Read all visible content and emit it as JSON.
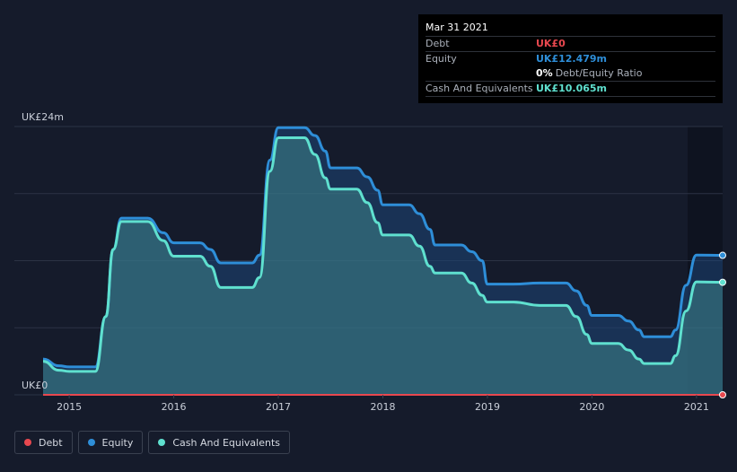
{
  "tooltip": {
    "date": "Mar 31 2021",
    "rows": [
      {
        "label": "Debt",
        "value": "UK£0",
        "color": "#e8484f"
      },
      {
        "label": "Equity",
        "value": "UK£12.479m",
        "color": "#2e8ed8"
      },
      {
        "label": "",
        "value": "0%",
        "sub": "Debt/Equity Ratio",
        "color": "#ffffff"
      },
      {
        "label": "Cash And Equivalents",
        "value": "UK£10.065m",
        "color": "#5fe0cf"
      }
    ]
  },
  "legend": [
    {
      "label": "Debt",
      "color": "#e8484f"
    },
    {
      "label": "Equity",
      "color": "#2e8ed8"
    },
    {
      "label": "Cash And Equivalents",
      "color": "#5fe0cf"
    }
  ],
  "chart_data": {
    "type": "area",
    "title": "",
    "xlabel": "",
    "ylabel": "",
    "x_ticks": [
      2015,
      2016,
      2017,
      2018,
      2019,
      2020,
      2021
    ],
    "y_tick_labels": [
      {
        "value": 0,
        "label": "UK£0"
      },
      {
        "value": 24,
        "label": "UK£24m"
      }
    ],
    "xlim": [
      2014.75,
      2021.25
    ],
    "ylim": [
      0,
      24
    ],
    "grid": true,
    "legend_position": "bottom-left",
    "series": [
      {
        "name": "Equity",
        "color": "#2e8ed8",
        "x": [
          2014.75,
          2014.9,
          2015.0,
          2015.25,
          2015.35,
          2015.42,
          2015.5,
          2015.75,
          2015.9,
          2016.0,
          2016.25,
          2016.35,
          2016.45,
          2016.75,
          2016.82,
          2016.92,
          2017.0,
          2017.25,
          2017.35,
          2017.45,
          2017.5,
          2017.75,
          2017.85,
          2017.95,
          2018.0,
          2018.25,
          2018.35,
          2018.45,
          2018.5,
          2018.75,
          2018.85,
          2018.95,
          2019.0,
          2019.25,
          2019.5,
          2019.75,
          2019.85,
          2019.95,
          2020.0,
          2020.25,
          2020.35,
          2020.45,
          2020.5,
          2020.75,
          2020.8,
          2020.9,
          2021.0,
          2021.25
        ],
        "values": [
          3.2,
          2.6,
          2.5,
          2.5,
          7.0,
          13.0,
          15.8,
          15.8,
          14.5,
          13.6,
          13.6,
          13.0,
          11.8,
          11.8,
          12.5,
          21.0,
          23.9,
          23.9,
          23.2,
          21.8,
          20.3,
          20.3,
          19.5,
          18.3,
          17.0,
          17.0,
          16.2,
          14.8,
          13.4,
          13.4,
          12.8,
          12.0,
          9.9,
          9.9,
          10.0,
          10.0,
          9.3,
          8.0,
          7.1,
          7.1,
          6.6,
          5.8,
          5.2,
          5.2,
          5.8,
          9.8,
          12.5,
          12.48
        ]
      },
      {
        "name": "Cash And Equivalents",
        "color": "#5fe0cf",
        "x": [
          2014.75,
          2014.9,
          2015.0,
          2015.25,
          2015.35,
          2015.42,
          2015.5,
          2015.75,
          2015.9,
          2016.0,
          2016.25,
          2016.35,
          2016.45,
          2016.75,
          2016.82,
          2016.92,
          2017.0,
          2017.25,
          2017.35,
          2017.45,
          2017.5,
          2017.75,
          2017.85,
          2017.95,
          2018.0,
          2018.25,
          2018.35,
          2018.45,
          2018.5,
          2018.75,
          2018.85,
          2018.95,
          2019.0,
          2019.25,
          2019.5,
          2019.75,
          2019.85,
          2019.95,
          2020.0,
          2020.25,
          2020.35,
          2020.45,
          2020.5,
          2020.75,
          2020.8,
          2020.9,
          2021.0,
          2021.25
        ],
        "values": [
          3.0,
          2.2,
          2.1,
          2.1,
          7.0,
          13.0,
          15.5,
          15.5,
          13.8,
          12.4,
          12.4,
          11.5,
          9.6,
          9.6,
          10.5,
          20.0,
          23.0,
          23.0,
          21.5,
          19.4,
          18.4,
          18.4,
          17.2,
          15.4,
          14.3,
          14.3,
          13.3,
          11.5,
          10.9,
          10.9,
          10.0,
          8.9,
          8.3,
          8.3,
          8.0,
          8.0,
          7.0,
          5.4,
          4.6,
          4.6,
          4.0,
          3.2,
          2.8,
          2.8,
          3.5,
          7.5,
          10.1,
          10.065
        ]
      },
      {
        "name": "Debt",
        "color": "#e8484f",
        "x": [
          2014.75,
          2021.25
        ],
        "values": [
          0,
          0
        ]
      }
    ]
  }
}
